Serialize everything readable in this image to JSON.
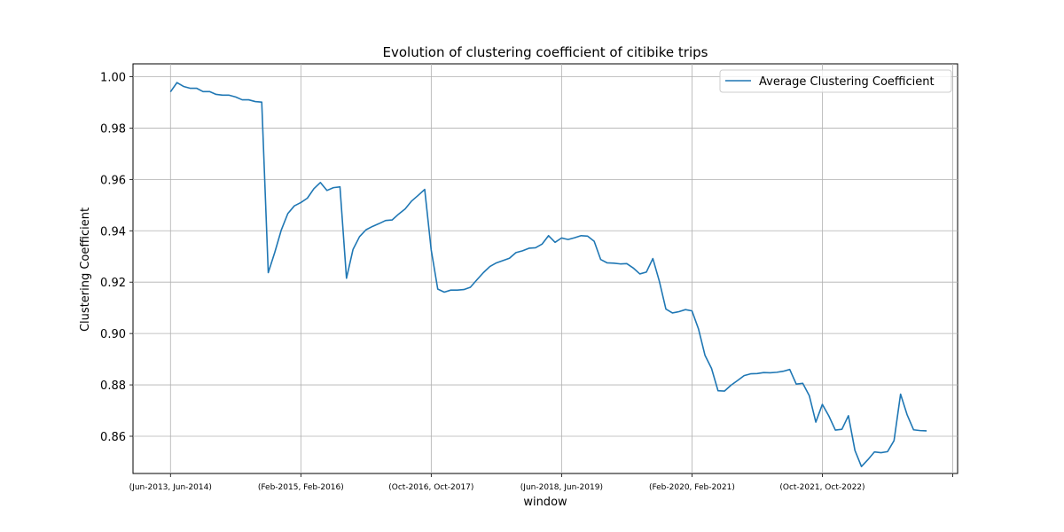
{
  "chart_data": {
    "type": "line",
    "title": "Evolution of clustering coefficient of citibike trips",
    "xlabel": "window",
    "ylabel": "Clustering Coefficient",
    "xlim": [
      -5.75,
      120.75
    ],
    "ylim": [
      0.8455,
      1.005
    ],
    "grid": true,
    "legend_position": "top-right",
    "xticks": [
      0,
      20,
      40,
      60,
      80,
      100,
      120
    ],
    "xtick_labels": [
      "(Jun-2013, Jun-2014)",
      "(Feb-2015, Feb-2016)",
      "(Oct-2016, Oct-2017)",
      "(Jun-2018, Jun-2019)",
      "(Feb-2020, Feb-2021)",
      "(Oct-2021, Oct-2022)",
      ""
    ],
    "yticks": [
      0.86,
      0.88,
      0.9,
      0.92,
      0.94,
      0.96,
      0.98,
      1.0
    ],
    "ytick_labels": [
      "0.86",
      "0.88",
      "0.90",
      "0.92",
      "0.94",
      "0.96",
      "0.98",
      "1.00"
    ],
    "series": [
      {
        "name": "Average Clustering Coefficient",
        "color": "#1f77b4",
        "x": [
          0,
          1,
          2,
          3,
          4,
          5,
          6,
          7,
          8,
          9,
          10,
          11,
          12,
          13,
          14,
          15,
          16,
          17,
          18,
          19,
          20,
          21,
          22,
          23,
          24,
          25,
          26,
          27,
          28,
          29,
          30,
          31,
          32,
          33,
          34,
          35,
          36,
          37,
          38,
          39,
          40,
          41,
          42,
          43,
          44,
          45,
          46,
          47,
          48,
          49,
          50,
          51,
          52,
          53,
          54,
          55,
          56,
          57,
          58,
          59,
          60,
          61,
          62,
          63,
          64,
          65,
          66,
          67,
          68,
          69,
          70,
          71,
          72,
          73,
          74,
          75,
          76,
          77,
          78,
          79,
          80,
          81,
          82,
          83,
          84,
          85,
          86,
          87,
          88,
          89,
          90,
          91,
          92,
          93,
          94,
          95,
          96,
          97,
          98,
          99,
          100,
          101,
          102,
          103,
          104,
          105,
          106,
          107,
          108,
          109,
          110,
          111,
          112,
          113,
          114,
          115,
          116
        ],
        "values": [
          0.9941,
          0.9977,
          0.9962,
          0.9955,
          0.9955,
          0.9942,
          0.9942,
          0.9931,
          0.9928,
          0.9928,
          0.9921,
          0.991,
          0.991,
          0.9903,
          0.9901,
          0.9237,
          0.9316,
          0.9403,
          0.9467,
          0.9497,
          0.951,
          0.9527,
          0.9564,
          0.9588,
          0.9557,
          0.9568,
          0.9571,
          0.9215,
          0.9327,
          0.9377,
          0.9404,
          0.9417,
          0.9428,
          0.944,
          0.9442,
          0.9465,
          0.9485,
          0.9516,
          0.9538,
          0.9561,
          0.9325,
          0.9173,
          0.9161,
          0.9169,
          0.9169,
          0.9171,
          0.918,
          0.9209,
          0.9237,
          0.9261,
          0.9275,
          0.9284,
          0.9293,
          0.9315,
          0.9322,
          0.9332,
          0.9334,
          0.9348,
          0.9381,
          0.9355,
          0.9372,
          0.9366,
          0.9373,
          0.9381,
          0.9379,
          0.9359,
          0.9288,
          0.9275,
          0.9274,
          0.9271,
          0.9272,
          0.9255,
          0.9232,
          0.9239,
          0.9292,
          0.9203,
          0.9095,
          0.908,
          0.9085,
          0.9093,
          0.9088,
          0.9018,
          0.8915,
          0.8864,
          0.8777,
          0.8776,
          0.8799,
          0.8817,
          0.8836,
          0.8843,
          0.8844,
          0.8848,
          0.8847,
          0.8849,
          0.8853,
          0.886,
          0.8803,
          0.8806,
          0.8758,
          0.8655,
          0.8724,
          0.8679,
          0.8624,
          0.8627,
          0.868,
          0.8545,
          0.8482,
          0.8509,
          0.8539,
          0.8536,
          0.854,
          0.8583,
          0.8764,
          0.8684,
          0.8625,
          0.8622,
          0.8621
        ]
      }
    ]
  }
}
